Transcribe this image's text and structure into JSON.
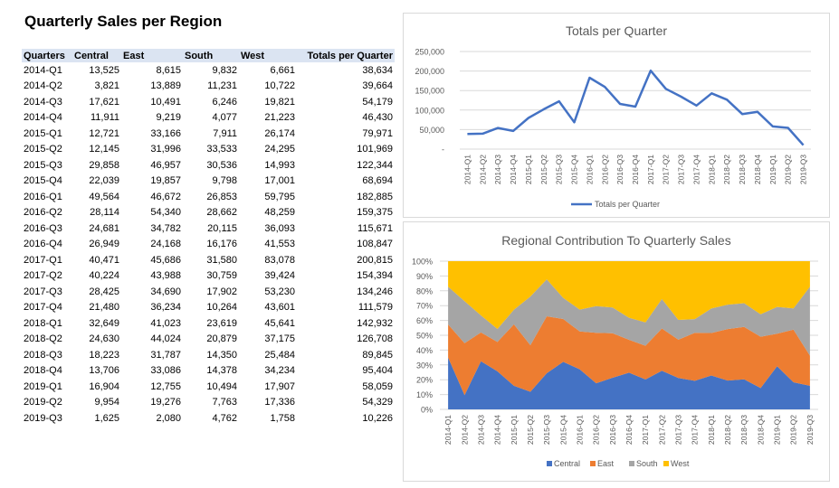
{
  "title": "Quarterly Sales per Region",
  "table": {
    "headers": [
      "Quarters",
      "Central",
      "East",
      "South",
      "West",
      "Totals per Quarter"
    ],
    "rows": [
      [
        "2014-Q1",
        "13,525",
        "8,615",
        "9,832",
        "6,661",
        "38,634"
      ],
      [
        "2014-Q2",
        "3,821",
        "13,889",
        "11,231",
        "10,722",
        "39,664"
      ],
      [
        "2014-Q3",
        "17,621",
        "10,491",
        "6,246",
        "19,821",
        "54,179"
      ],
      [
        "2014-Q4",
        "11,911",
        "9,219",
        "4,077",
        "21,223",
        "46,430"
      ],
      [
        "2015-Q1",
        "12,721",
        "33,166",
        "7,911",
        "26,174",
        "79,971"
      ],
      [
        "2015-Q2",
        "12,145",
        "31,996",
        "33,533",
        "24,295",
        "101,969"
      ],
      [
        "2015-Q3",
        "29,858",
        "46,957",
        "30,536",
        "14,993",
        "122,344"
      ],
      [
        "2015-Q4",
        "22,039",
        "19,857",
        "9,798",
        "17,001",
        "68,694"
      ],
      [
        "2016-Q1",
        "49,564",
        "46,672",
        "26,853",
        "59,795",
        "182,885"
      ],
      [
        "2016-Q2",
        "28,114",
        "54,340",
        "28,662",
        "48,259",
        "159,375"
      ],
      [
        "2016-Q3",
        "24,681",
        "34,782",
        "20,115",
        "36,093",
        "115,671"
      ],
      [
        "2016-Q4",
        "26,949",
        "24,168",
        "16,176",
        "41,553",
        "108,847"
      ],
      [
        "2017-Q1",
        "40,471",
        "45,686",
        "31,580",
        "83,078",
        "200,815"
      ],
      [
        "2017-Q2",
        "40,224",
        "43,988",
        "30,759",
        "39,424",
        "154,394"
      ],
      [
        "2017-Q3",
        "28,425",
        "34,690",
        "17,902",
        "53,230",
        "134,246"
      ],
      [
        "2017-Q4",
        "21,480",
        "36,234",
        "10,264",
        "43,601",
        "111,579"
      ],
      [
        "2018-Q1",
        "32,649",
        "41,023",
        "23,619",
        "45,641",
        "142,932"
      ],
      [
        "2018-Q2",
        "24,630",
        "44,024",
        "20,879",
        "37,175",
        "126,708"
      ],
      [
        "2018-Q3",
        "18,223",
        "31,787",
        "14,350",
        "25,484",
        "89,845"
      ],
      [
        "2018-Q4",
        "13,706",
        "33,086",
        "14,378",
        "34,234",
        "95,404"
      ],
      [
        "2019-Q1",
        "16,904",
        "12,755",
        "10,494",
        "17,907",
        "58,059"
      ],
      [
        "2019-Q2",
        "9,954",
        "19,276",
        "7,763",
        "17,336",
        "54,329"
      ],
      [
        "2019-Q3",
        "1,625",
        "2,080",
        "4,762",
        "1,758",
        "10,226"
      ]
    ]
  },
  "chart_data": [
    {
      "type": "line",
      "title": "Totals per Quarter",
      "categories": [
        "2014-Q1",
        "2014-Q2",
        "2014-Q3",
        "2014-Q4",
        "2015-Q1",
        "2015-Q2",
        "2015-Q3",
        "2015-Q4",
        "2016-Q1",
        "2016-Q2",
        "2016-Q3",
        "2016-Q4",
        "2017-Q1",
        "2017-Q2",
        "2017-Q3",
        "2017-Q4",
        "2018-Q1",
        "2018-Q2",
        "2018-Q3",
        "2018-Q4",
        "2019-Q1",
        "2019-Q2",
        "2019-Q3"
      ],
      "series": [
        {
          "name": "Totals per Quarter",
          "color": "#4472c4",
          "values": [
            38634,
            39664,
            54179,
            46430,
            79971,
            101969,
            122344,
            68694,
            182885,
            159375,
            115671,
            108847,
            200815,
            154394,
            134246,
            111579,
            142932,
            126708,
            89845,
            95404,
            58059,
            54329,
            10226
          ]
        }
      ],
      "ylim": [
        0,
        250000
      ],
      "yticks": [
        "-",
        "50,000",
        "100,000",
        "150,000",
        "200,000",
        "250,000"
      ],
      "grid": true,
      "legend": "bottom"
    },
    {
      "type": "area",
      "stacked": "percent",
      "title": "Regional Contribution To Quarterly Sales",
      "categories": [
        "2014-Q1",
        "2014-Q2",
        "2014-Q3",
        "2014-Q4",
        "2015-Q1",
        "2015-Q2",
        "2015-Q3",
        "2015-Q4",
        "2016-Q1",
        "2016-Q2",
        "2016-Q3",
        "2016-Q4",
        "2017-Q1",
        "2017-Q2",
        "2017-Q3",
        "2017-Q4",
        "2018-Q1",
        "2018-Q2",
        "2018-Q3",
        "2018-Q4",
        "2019-Q1",
        "2019-Q2",
        "2019-Q3"
      ],
      "series": [
        {
          "name": "Central",
          "color": "#4472c4",
          "values": [
            13525,
            3821,
            17621,
            11911,
            12721,
            12145,
            29858,
            22039,
            49564,
            28114,
            24681,
            26949,
            40471,
            40224,
            28425,
            21480,
            32649,
            24630,
            18223,
            13706,
            16904,
            9954,
            1625
          ]
        },
        {
          "name": "East",
          "color": "#ed7d31",
          "values": [
            8615,
            13889,
            10491,
            9219,
            33166,
            31996,
            46957,
            19857,
            46672,
            54340,
            34782,
            24168,
            45686,
            43988,
            34690,
            36234,
            41023,
            44024,
            31787,
            33086,
            12755,
            19276,
            2080
          ]
        },
        {
          "name": "South",
          "color": "#a5a5a5",
          "values": [
            9832,
            11231,
            6246,
            4077,
            7911,
            33533,
            30536,
            9798,
            26853,
            28662,
            20115,
            16176,
            31580,
            30759,
            17902,
            10264,
            23619,
            20879,
            14350,
            14378,
            10494,
            7763,
            4762
          ]
        },
        {
          "name": "West",
          "color": "#ffc000",
          "values": [
            6661,
            10722,
            19821,
            21223,
            26174,
            24295,
            14993,
            17001,
            59795,
            48259,
            36093,
            41553,
            83078,
            39424,
            53230,
            43601,
            45641,
            37175,
            25484,
            34234,
            17907,
            17336,
            1758
          ]
        }
      ],
      "ylim": [
        0,
        1
      ],
      "yticks": [
        "0%",
        "10%",
        "20%",
        "30%",
        "40%",
        "50%",
        "60%",
        "70%",
        "80%",
        "90%",
        "100%"
      ],
      "grid": true,
      "legend": "bottom"
    }
  ]
}
